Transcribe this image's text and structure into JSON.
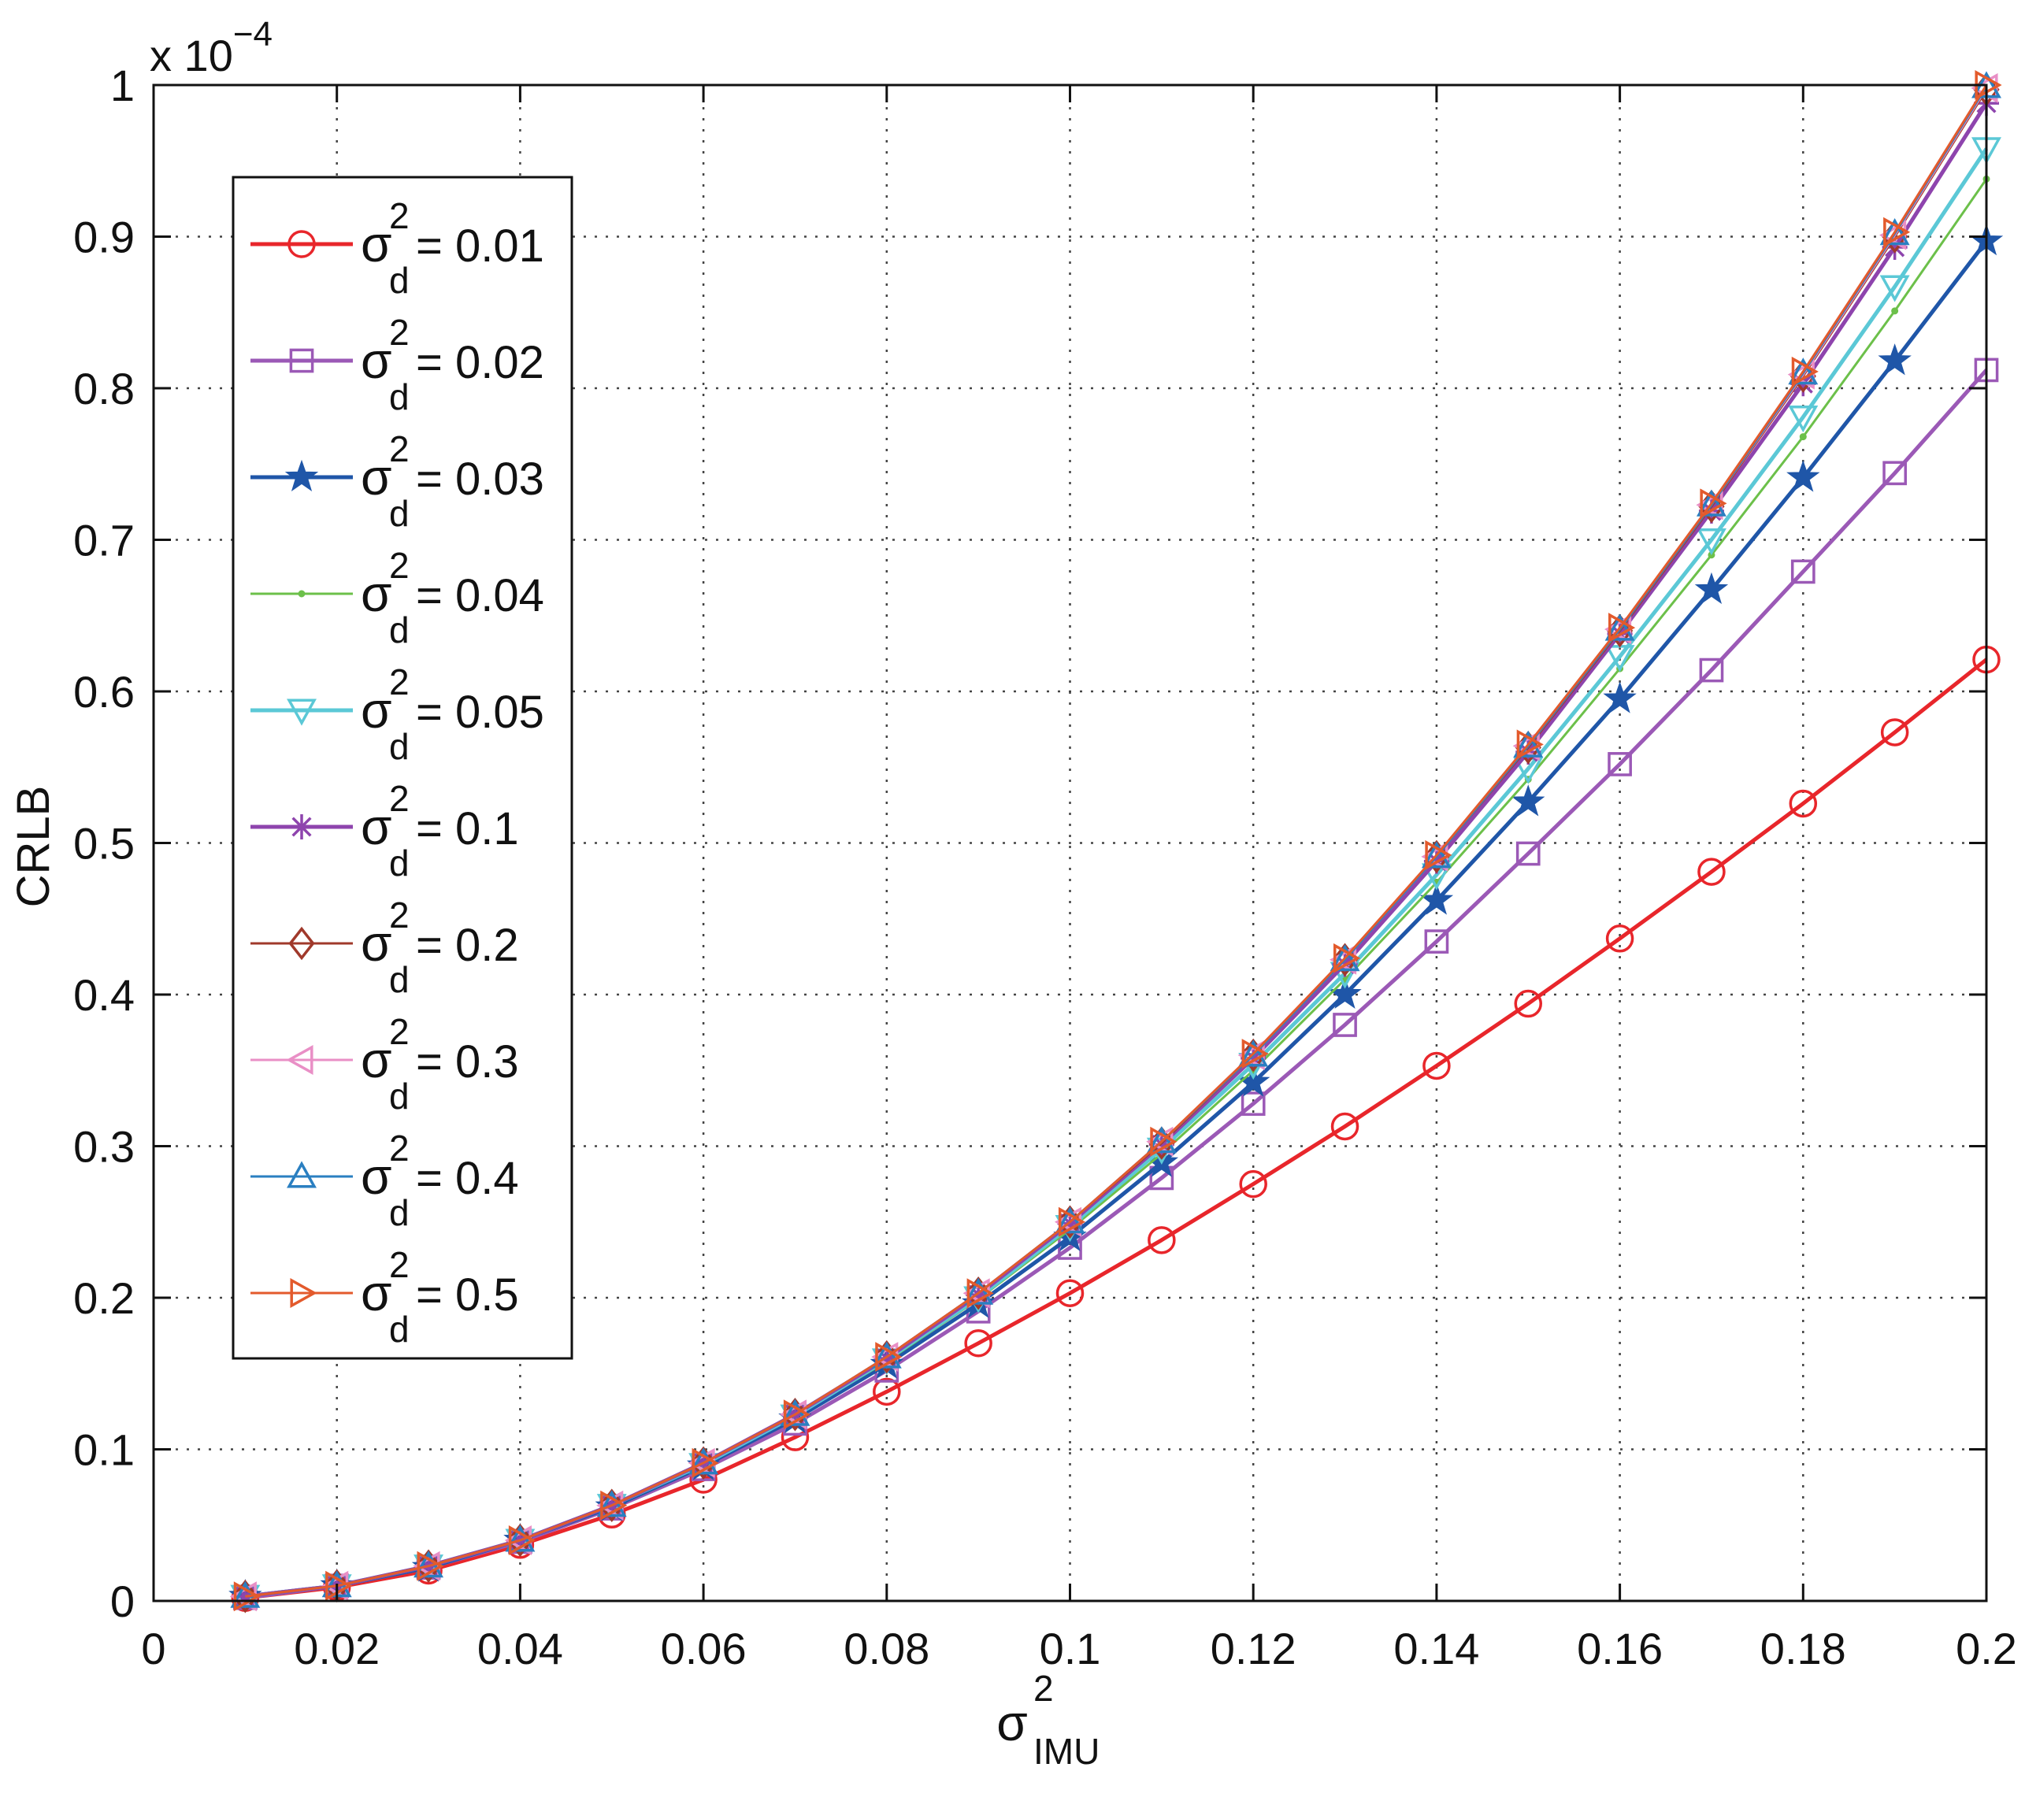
{
  "chart_data": {
    "type": "line",
    "title": "",
    "xlabel": "σ",
    "xlabel_sup": "2",
    "xlabel_sub": "IMU",
    "ylabel": "CRLB",
    "y_multiplier": "x 10",
    "y_multiplier_exp": "−4",
    "xlim": [
      0,
      0.2
    ],
    "ylim": [
      0,
      1
    ],
    "xticks": [
      0,
      0.02,
      0.04,
      0.06,
      0.08,
      0.1,
      0.12,
      0.14,
      0.16,
      0.18,
      0.2
    ],
    "xtick_labels": [
      "0",
      "0.02",
      "0.04",
      "0.06",
      "0.08",
      "0.1",
      "0.12",
      "0.14",
      "0.16",
      "0.18",
      "0.2"
    ],
    "yticks": [
      0,
      0.1,
      0.2,
      0.3,
      0.4,
      0.5,
      0.6,
      0.7,
      0.8,
      0.9,
      1
    ],
    "ytick_labels": [
      "0",
      "0.1",
      "0.2",
      "0.3",
      "0.4",
      "0.5",
      "0.6",
      "0.7",
      "0.8",
      "0.9",
      "1"
    ],
    "grid": true,
    "legend_position": "top-left",
    "x": [
      0.01,
      0.02,
      0.03,
      0.04,
      0.05,
      0.06,
      0.07,
      0.08,
      0.09,
      0.1,
      0.11,
      0.12,
      0.13,
      0.14,
      0.15,
      0.16,
      0.17,
      0.18,
      0.19,
      0.2
    ],
    "series": [
      {
        "name": "= 0.01",
        "sigma": "σ",
        "sup": "2",
        "sub": "d",
        "color": "#e8262b",
        "marker": "circle",
        "line_weight": "thick",
        "values": [
          0.002,
          0.009,
          0.02,
          0.037,
          0.057,
          0.08,
          0.108,
          0.138,
          0.17,
          0.203,
          0.238,
          0.275,
          0.313,
          0.353,
          0.394,
          0.437,
          0.481,
          0.526,
          0.573,
          0.621
        ]
      },
      {
        "name": "= 0.02",
        "sigma": "σ",
        "sup": "2",
        "sub": "d",
        "color": "#9b59b6",
        "marker": "square",
        "line_weight": "thick",
        "values": [
          0.002,
          0.01,
          0.022,
          0.039,
          0.061,
          0.087,
          0.117,
          0.152,
          0.191,
          0.233,
          0.279,
          0.328,
          0.38,
          0.435,
          0.493,
          0.552,
          0.614,
          0.679,
          0.744,
          0.812
        ]
      },
      {
        "name": "= 0.03",
        "sigma": "σ",
        "sup": "2",
        "sub": "d",
        "color": "#1f56a8",
        "marker": "star",
        "line_weight": "thick",
        "values": [
          0.003,
          0.01,
          0.022,
          0.04,
          0.062,
          0.089,
          0.12,
          0.156,
          0.196,
          0.24,
          0.289,
          0.342,
          0.4,
          0.462,
          0.527,
          0.595,
          0.667,
          0.741,
          0.818,
          0.897
        ]
      },
      {
        "name": "= 0.04",
        "sigma": "σ",
        "sup": "2",
        "sub": "d",
        "color": "#6cc04a",
        "marker": "dot",
        "line_weight": "thin",
        "values": [
          0.003,
          0.01,
          0.023,
          0.04,
          0.063,
          0.09,
          0.122,
          0.158,
          0.199,
          0.245,
          0.295,
          0.35,
          0.41,
          0.474,
          0.542,
          0.615,
          0.69,
          0.768,
          0.851,
          0.938
        ]
      },
      {
        "name": "= 0.05",
        "sigma": "σ",
        "sup": "2",
        "sub": "d",
        "color": "#5bc8d6",
        "marker": "triangle-down",
        "line_weight": "thick",
        "values": [
          0.003,
          0.01,
          0.023,
          0.04,
          0.063,
          0.09,
          0.122,
          0.159,
          0.2,
          0.247,
          0.298,
          0.354,
          0.414,
          0.479,
          0.549,
          0.623,
          0.7,
          0.781,
          0.867,
          0.958
        ]
      },
      {
        "name": "= 0.1",
        "sigma": "σ",
        "sup": "2",
        "sub": "d",
        "color": "#8e44ad",
        "marker": "asterisk",
        "line_weight": "thick",
        "values": [
          0.003,
          0.01,
          0.023,
          0.04,
          0.063,
          0.091,
          0.123,
          0.16,
          0.202,
          0.249,
          0.301,
          0.358,
          0.42,
          0.488,
          0.56,
          0.638,
          0.719,
          0.803,
          0.893,
          0.988
        ]
      },
      {
        "name": "= 0.2",
        "sigma": "σ",
        "sup": "2",
        "sub": "d",
        "color": "#a0392b",
        "marker": "diamond",
        "line_weight": "thin",
        "values": [
          0.003,
          0.01,
          0.023,
          0.04,
          0.063,
          0.091,
          0.123,
          0.161,
          0.203,
          0.25,
          0.302,
          0.36,
          0.423,
          0.491,
          0.563,
          0.64,
          0.722,
          0.808,
          0.9,
          0.997
        ]
      },
      {
        "name": "= 0.3",
        "sigma": "σ",
        "sup": "2",
        "sub": "d",
        "color": "#e98fc6",
        "marker": "triangle-left",
        "line_weight": "thin",
        "values": [
          0.003,
          0.01,
          0.023,
          0.04,
          0.063,
          0.091,
          0.123,
          0.161,
          0.203,
          0.25,
          0.303,
          0.36,
          0.423,
          0.491,
          0.564,
          0.641,
          0.723,
          0.809,
          0.901,
          0.998
        ]
      },
      {
        "name": "= 0.4",
        "sigma": "σ",
        "sup": "2",
        "sub": "d",
        "color": "#2a7fc1",
        "marker": "triangle-up",
        "line_weight": "thin",
        "values": [
          0.003,
          0.01,
          0.023,
          0.04,
          0.063,
          0.091,
          0.123,
          0.161,
          0.203,
          0.25,
          0.303,
          0.36,
          0.423,
          0.491,
          0.564,
          0.641,
          0.723,
          0.81,
          0.902,
          0.999
        ]
      },
      {
        "name": "= 0.5",
        "sigma": "σ",
        "sup": "2",
        "sub": "d",
        "color": "#e35a2c",
        "marker": "triangle-right",
        "line_weight": "thin",
        "values": [
          0.003,
          0.01,
          0.023,
          0.04,
          0.063,
          0.091,
          0.123,
          0.161,
          0.203,
          0.25,
          0.303,
          0.361,
          0.424,
          0.492,
          0.565,
          0.642,
          0.724,
          0.811,
          0.903,
          1.0
        ]
      }
    ]
  }
}
